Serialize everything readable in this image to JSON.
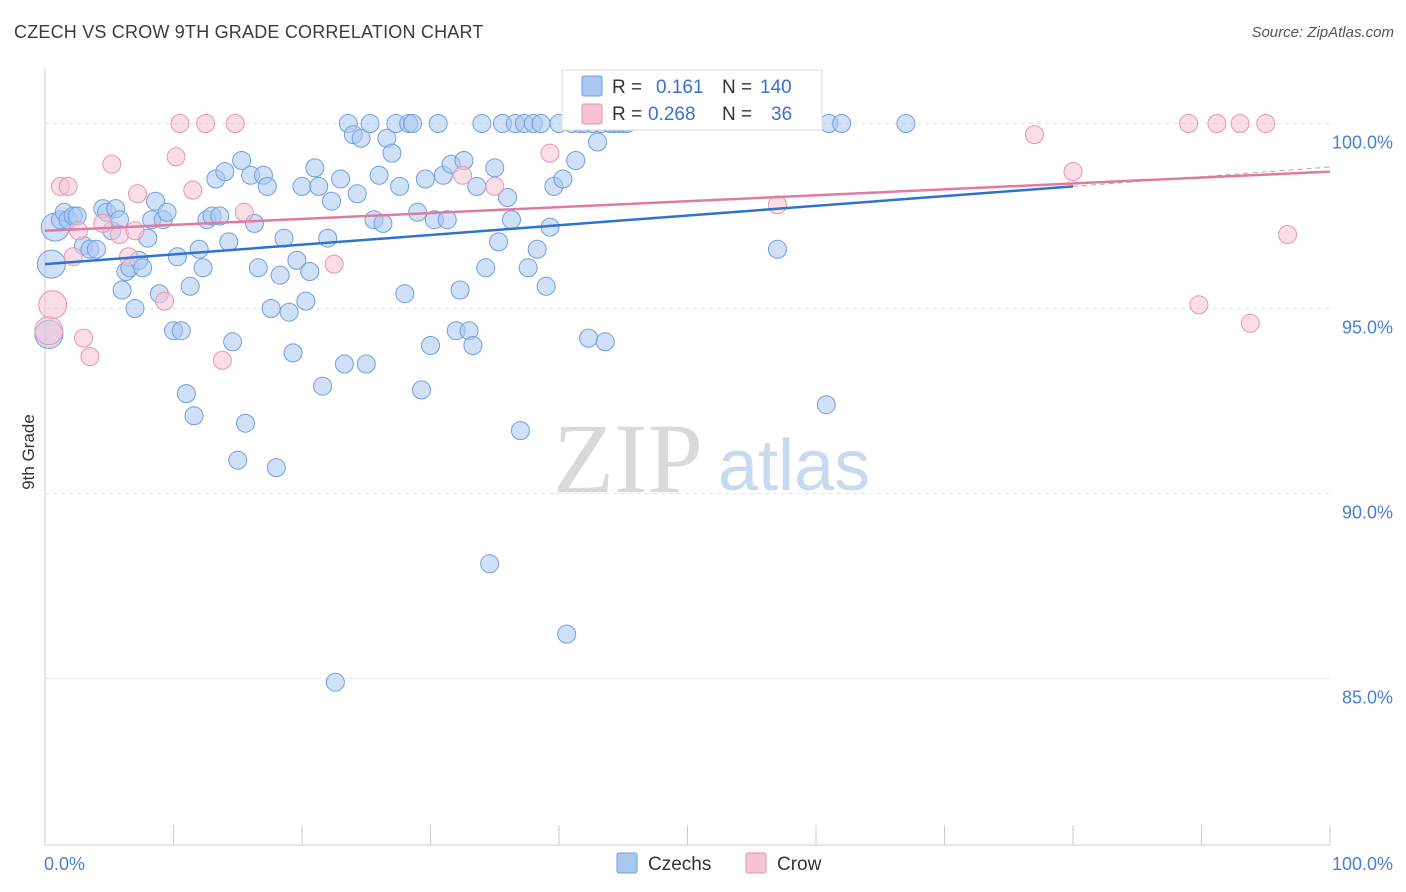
{
  "title": "CZECH VS CROW 9TH GRADE CORRELATION CHART",
  "source": "Source: ZipAtlas.com",
  "watermark": {
    "zip": "ZIP",
    "atlas": "atlas"
  },
  "colors": {
    "czech_fill": "#a9c8f0",
    "czech_stroke": "#6e9fe0",
    "czech_line": "#2f72d0",
    "crow_fill": "#f6c3d3",
    "crow_stroke": "#ea93b0",
    "crow_line": "#e07aa0",
    "tick": "#4a7fd4"
  },
  "legend": {
    "row1": {
      "r_label": "R =",
      "r_value": "0.161",
      "n_label": "N =",
      "n_value": "140"
    },
    "row2": {
      "r_label": "R =",
      "r_value": "0.268",
      "n_label": "N =",
      "n_value": "36"
    }
  },
  "chart_data": {
    "type": "scatter",
    "title": "CZECH VS CROW 9TH GRADE CORRELATION CHART",
    "xlabel": "",
    "ylabel": "9th Grade",
    "xlim": [
      0,
      100
    ],
    "ylim": [
      80.5,
      101.5
    ],
    "x_tick_labels": [
      "0.0%",
      "100.0%"
    ],
    "y_ticks": [
      85,
      90,
      95,
      100
    ],
    "y_tick_labels": [
      "85.0%",
      "90.0%",
      "95.0%",
      "100.0%"
    ],
    "grid": true,
    "legend_position": "top-center",
    "series": [
      {
        "name": "Czechs",
        "r": 0.161,
        "n": 140,
        "trend": {
          "x": [
            0,
            80
          ],
          "y": [
            96.2,
            98.3
          ]
        },
        "points": [
          [
            0.3,
            94.3
          ],
          [
            0.5,
            96.2
          ],
          [
            0.8,
            97.2
          ],
          [
            1.2,
            97.4
          ],
          [
            1.5,
            97.6
          ],
          [
            1.8,
            97.4
          ],
          [
            2.2,
            97.5
          ],
          [
            2.5,
            97.5
          ],
          [
            3.0,
            96.7
          ],
          [
            3.5,
            96.6
          ],
          [
            4.0,
            96.6
          ],
          [
            4.5,
            97.7
          ],
          [
            4.8,
            97.6
          ],
          [
            5.2,
            97.1
          ],
          [
            5.5,
            97.7
          ],
          [
            5.8,
            97.4
          ],
          [
            6.0,
            95.5
          ],
          [
            6.3,
            96.0
          ],
          [
            6.6,
            96.1
          ],
          [
            7.0,
            95.0
          ],
          [
            7.3,
            96.3
          ],
          [
            7.6,
            96.1
          ],
          [
            8.0,
            96.9
          ],
          [
            8.3,
            97.4
          ],
          [
            8.6,
            97.9
          ],
          [
            8.9,
            95.4
          ],
          [
            9.2,
            97.4
          ],
          [
            9.5,
            97.6
          ],
          [
            10.0,
            94.4
          ],
          [
            10.3,
            96.4
          ],
          [
            10.6,
            94.4
          ],
          [
            11.0,
            92.7
          ],
          [
            11.3,
            95.6
          ],
          [
            11.6,
            92.1
          ],
          [
            12.0,
            96.6
          ],
          [
            12.3,
            96.1
          ],
          [
            12.6,
            97.4
          ],
          [
            13.0,
            97.5
          ],
          [
            13.3,
            98.5
          ],
          [
            13.6,
            97.5
          ],
          [
            14.0,
            98.7
          ],
          [
            14.3,
            96.8
          ],
          [
            14.6,
            94.1
          ],
          [
            15.0,
            90.9
          ],
          [
            15.3,
            99.0
          ],
          [
            15.6,
            91.9
          ],
          [
            16.0,
            98.6
          ],
          [
            16.3,
            97.3
          ],
          [
            16.6,
            96.1
          ],
          [
            17.0,
            98.6
          ],
          [
            17.3,
            98.3
          ],
          [
            17.6,
            95.0
          ],
          [
            18.0,
            90.7
          ],
          [
            18.3,
            95.9
          ],
          [
            18.6,
            96.9
          ],
          [
            19.0,
            94.9
          ],
          [
            19.3,
            93.8
          ],
          [
            19.6,
            96.3
          ],
          [
            20.0,
            98.3
          ],
          [
            20.3,
            95.2
          ],
          [
            20.6,
            96.0
          ],
          [
            21.0,
            98.8
          ],
          [
            21.3,
            98.3
          ],
          [
            21.6,
            92.9
          ],
          [
            22.0,
            96.9
          ],
          [
            22.3,
            97.9
          ],
          [
            22.6,
            84.9
          ],
          [
            23.0,
            98.5
          ],
          [
            23.3,
            93.5
          ],
          [
            23.6,
            100.0
          ],
          [
            24.0,
            99.7
          ],
          [
            24.3,
            98.1
          ],
          [
            24.6,
            99.6
          ],
          [
            25.0,
            93.5
          ],
          [
            25.3,
            100.0
          ],
          [
            25.6,
            97.4
          ],
          [
            26.0,
            98.6
          ],
          [
            26.3,
            97.3
          ],
          [
            26.6,
            99.6
          ],
          [
            27.0,
            99.2
          ],
          [
            27.3,
            100.0
          ],
          [
            27.6,
            98.3
          ],
          [
            28.0,
            95.4
          ],
          [
            28.3,
            100.0
          ],
          [
            28.6,
            100.0
          ],
          [
            29.0,
            97.6
          ],
          [
            29.3,
            92.8
          ],
          [
            29.6,
            98.5
          ],
          [
            30.0,
            94.0
          ],
          [
            30.3,
            97.4
          ],
          [
            30.6,
            100.0
          ],
          [
            31.0,
            98.6
          ],
          [
            31.3,
            97.4
          ],
          [
            31.6,
            98.9
          ],
          [
            32.0,
            94.4
          ],
          [
            32.3,
            95.5
          ],
          [
            32.6,
            99.0
          ],
          [
            33.0,
            94.4
          ],
          [
            33.3,
            94.0
          ],
          [
            33.6,
            98.3
          ],
          [
            34.0,
            100.0
          ],
          [
            34.3,
            96.1
          ],
          [
            34.6,
            88.1
          ],
          [
            35.0,
            98.8
          ],
          [
            35.3,
            96.8
          ],
          [
            35.6,
            100.0
          ],
          [
            36.0,
            98.0
          ],
          [
            36.3,
            97.4
          ],
          [
            36.6,
            100.0
          ],
          [
            37.0,
            91.7
          ],
          [
            37.3,
            100.0
          ],
          [
            37.6,
            96.1
          ],
          [
            38.0,
            100.0
          ],
          [
            38.3,
            96.6
          ],
          [
            38.6,
            100.0
          ],
          [
            39.0,
            95.6
          ],
          [
            39.3,
            97.2
          ],
          [
            39.6,
            98.3
          ],
          [
            40.0,
            100.0
          ],
          [
            40.3,
            98.5
          ],
          [
            40.6,
            86.2
          ],
          [
            41.0,
            100.0
          ],
          [
            41.3,
            99.0
          ],
          [
            41.6,
            100.0
          ],
          [
            42.0,
            100.0
          ],
          [
            42.3,
            94.2
          ],
          [
            42.6,
            100.0
          ],
          [
            43.0,
            99.5
          ],
          [
            43.3,
            100.0
          ],
          [
            43.6,
            94.1
          ],
          [
            44.0,
            100.0
          ],
          [
            44.3,
            100.0
          ],
          [
            44.6,
            100.0
          ],
          [
            45.0,
            100.0
          ],
          [
            45.3,
            100.0
          ],
          [
            57.0,
            96.6
          ],
          [
            60.8,
            92.4
          ],
          [
            61.0,
            100.0
          ],
          [
            62.0,
            100.0
          ],
          [
            67.0,
            100.0
          ]
        ]
      },
      {
        "name": "Crow",
        "r": 0.268,
        "n": 36,
        "trend": {
          "x": [
            0,
            100
          ],
          "y": [
            97.1,
            98.7
          ]
        },
        "points": [
          [
            0.3,
            94.4
          ],
          [
            0.6,
            95.1
          ],
          [
            1.2,
            98.3
          ],
          [
            1.8,
            98.3
          ],
          [
            2.2,
            96.4
          ],
          [
            2.6,
            97.1
          ],
          [
            3.0,
            94.2
          ],
          [
            3.5,
            93.7
          ],
          [
            4.5,
            97.3
          ],
          [
            5.2,
            98.9
          ],
          [
            5.8,
            97.0
          ],
          [
            6.5,
            96.4
          ],
          [
            7.0,
            97.1
          ],
          [
            7.2,
            98.1
          ],
          [
            9.3,
            95.2
          ],
          [
            10.2,
            99.1
          ],
          [
            10.5,
            100.0
          ],
          [
            11.5,
            98.2
          ],
          [
            12.5,
            100.0
          ],
          [
            13.8,
            93.6
          ],
          [
            14.8,
            100.0
          ],
          [
            15.5,
            97.6
          ],
          [
            22.5,
            96.2
          ],
          [
            32.5,
            98.6
          ],
          [
            35.0,
            98.3
          ],
          [
            39.3,
            99.2
          ],
          [
            57.0,
            97.8
          ],
          [
            77.0,
            99.7
          ],
          [
            80.0,
            98.7
          ],
          [
            89.0,
            100.0
          ],
          [
            89.8,
            95.1
          ],
          [
            91.2,
            100.0
          ],
          [
            93.0,
            100.0
          ],
          [
            93.8,
            94.6
          ],
          [
            95.0,
            100.0
          ],
          [
            96.7,
            97.0
          ]
        ]
      }
    ]
  },
  "bottom_legend": {
    "czechs": "Czechs",
    "crow": "Crow"
  }
}
